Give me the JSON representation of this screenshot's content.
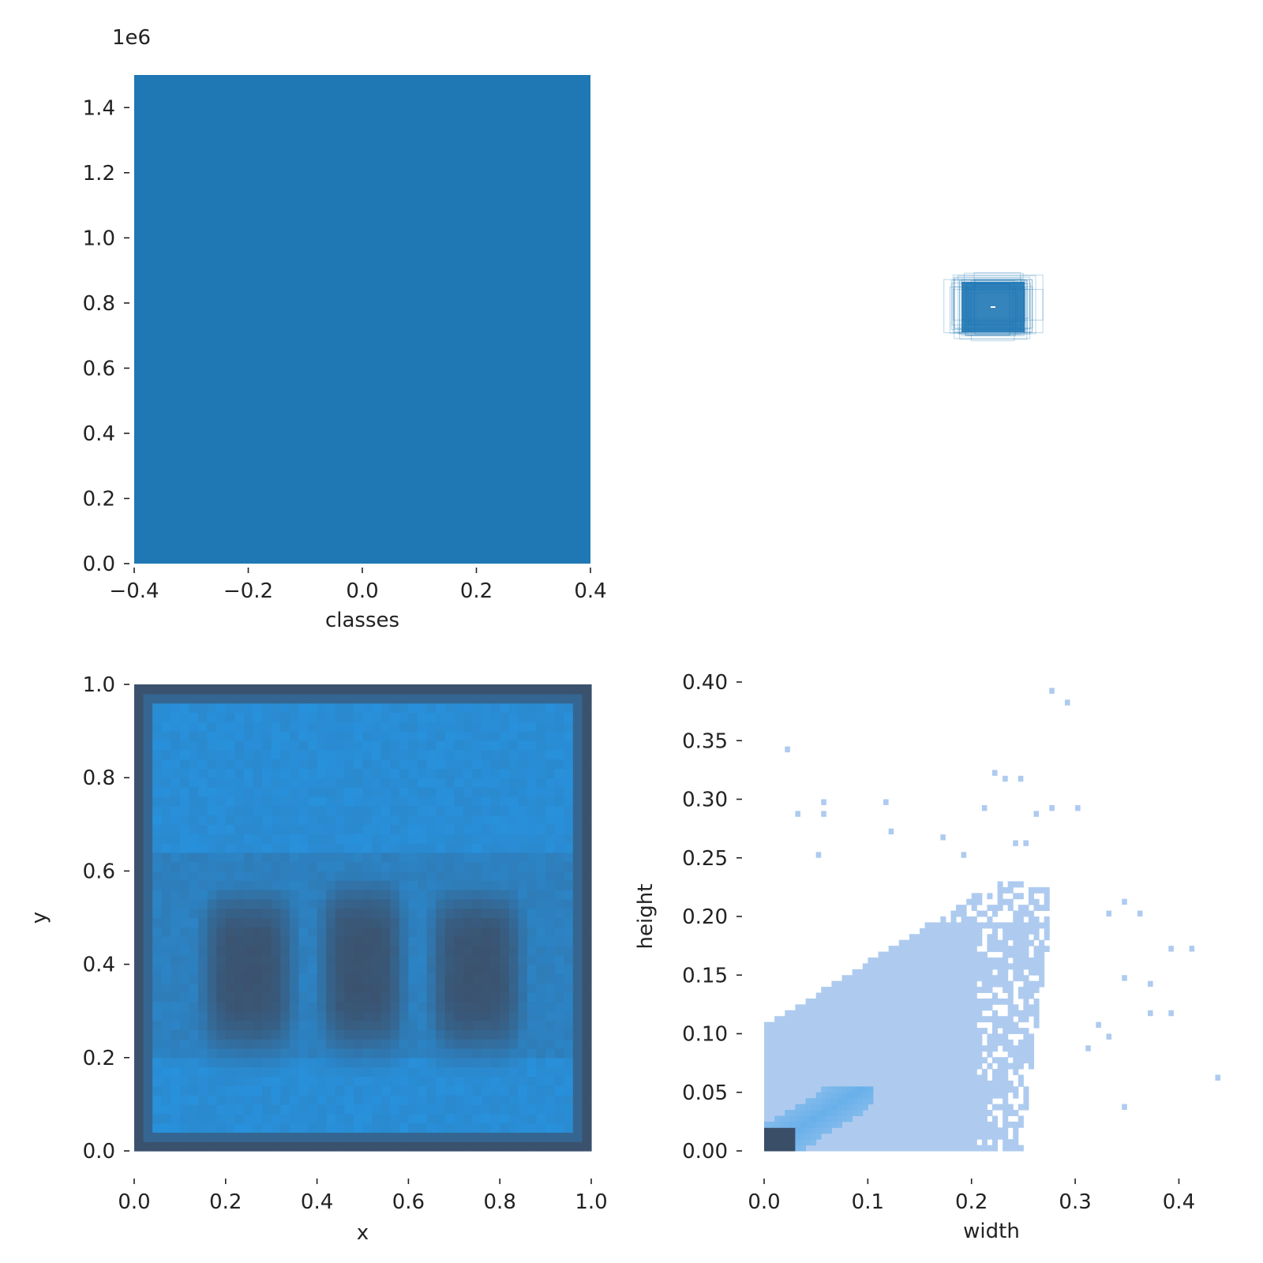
{
  "chart_data": [
    {
      "panel": "top-left",
      "type": "bar",
      "categories": [
        0
      ],
      "values": [
        1500000
      ],
      "bar_span": [
        -0.4,
        0.4
      ],
      "xlabel": "classes",
      "ylabel": "",
      "xlim": [
        -0.4,
        0.4
      ],
      "ylim": [
        0,
        1500000
      ],
      "offset_text": "1e6",
      "xticks": [
        "−0.4",
        "−0.2",
        "0.0",
        "0.2",
        "0.4"
      ],
      "yticks": [
        "0.0",
        "0.2",
        "0.4",
        "0.6",
        "0.8",
        "1.0",
        "1.2",
        "1.4"
      ],
      "color": "#1f77b4",
      "grid": false
    },
    {
      "panel": "top-right",
      "type": "other",
      "description": "box overlay",
      "color": "#1f77b4"
    },
    {
      "panel": "bottom-left",
      "type": "heatmap",
      "xlabel": "x",
      "ylabel": "y",
      "xlim": [
        0,
        1
      ],
      "ylim": [
        0,
        1
      ],
      "xticks": [
        "0.0",
        "0.2",
        "0.4",
        "0.6",
        "0.8",
        "1.0"
      ],
      "yticks": [
        "0.0",
        "0.2",
        "0.4",
        "0.6",
        "0.8",
        "1.0"
      ],
      "bins": 50,
      "low_density_color": "#2795e3",
      "high_density_color": "#3b526e",
      "dense_regions": [
        {
          "x": [
            0.16,
            0.34
          ],
          "y": [
            0.22,
            0.55
          ]
        },
        {
          "x": [
            0.42,
            0.58
          ],
          "y": [
            0.22,
            0.57
          ]
        },
        {
          "x": [
            0.66,
            0.84
          ],
          "y": [
            0.22,
            0.55
          ]
        }
      ],
      "dense_border": true,
      "grid": false
    },
    {
      "panel": "bottom-right",
      "type": "heatmap",
      "xlabel": "width",
      "ylabel": "height",
      "xlim": [
        0,
        0.44
      ],
      "ylim": [
        0,
        0.4
      ],
      "xticks": [
        "0.0",
        "0.1",
        "0.2",
        "0.3",
        "0.4"
      ],
      "yticks": [
        "0.00",
        "0.05",
        "0.10",
        "0.15",
        "0.20",
        "0.25",
        "0.30",
        "0.35",
        "0.40"
      ],
      "bin_size": 0.005,
      "low_density_color": "#aecbef",
      "mid_density_color": "#2f9ae6",
      "high_density_color": "#3b4e68",
      "outlier_points": [
        [
          0.02,
          0.34
        ],
        [
          0.275,
          0.39
        ],
        [
          0.29,
          0.38
        ],
        [
          0.22,
          0.32
        ],
        [
          0.23,
          0.315
        ],
        [
          0.245,
          0.315
        ],
        [
          0.03,
          0.285
        ],
        [
          0.055,
          0.295
        ],
        [
          0.055,
          0.285
        ],
        [
          0.115,
          0.295
        ],
        [
          0.12,
          0.27
        ],
        [
          0.21,
          0.29
        ],
        [
          0.26,
          0.285
        ],
        [
          0.275,
          0.29
        ],
        [
          0.3,
          0.29
        ],
        [
          0.24,
          0.26
        ],
        [
          0.25,
          0.26
        ],
        [
          0.19,
          0.25
        ],
        [
          0.17,
          0.265
        ],
        [
          0.05,
          0.25
        ],
        [
          0.33,
          0.2
        ],
        [
          0.345,
          0.21
        ],
        [
          0.36,
          0.2
        ],
        [
          0.39,
          0.17
        ],
        [
          0.41,
          0.17
        ],
        [
          0.345,
          0.145
        ],
        [
          0.37,
          0.14
        ],
        [
          0.37,
          0.115
        ],
        [
          0.39,
          0.115
        ],
        [
          0.32,
          0.105
        ],
        [
          0.33,
          0.095
        ],
        [
          0.31,
          0.085
        ],
        [
          0.435,
          0.06
        ],
        [
          0.345,
          0.035
        ],
        [
          0.24,
          0.01
        ],
        [
          0.235,
          0.02
        ]
      ],
      "grid": false
    }
  ]
}
